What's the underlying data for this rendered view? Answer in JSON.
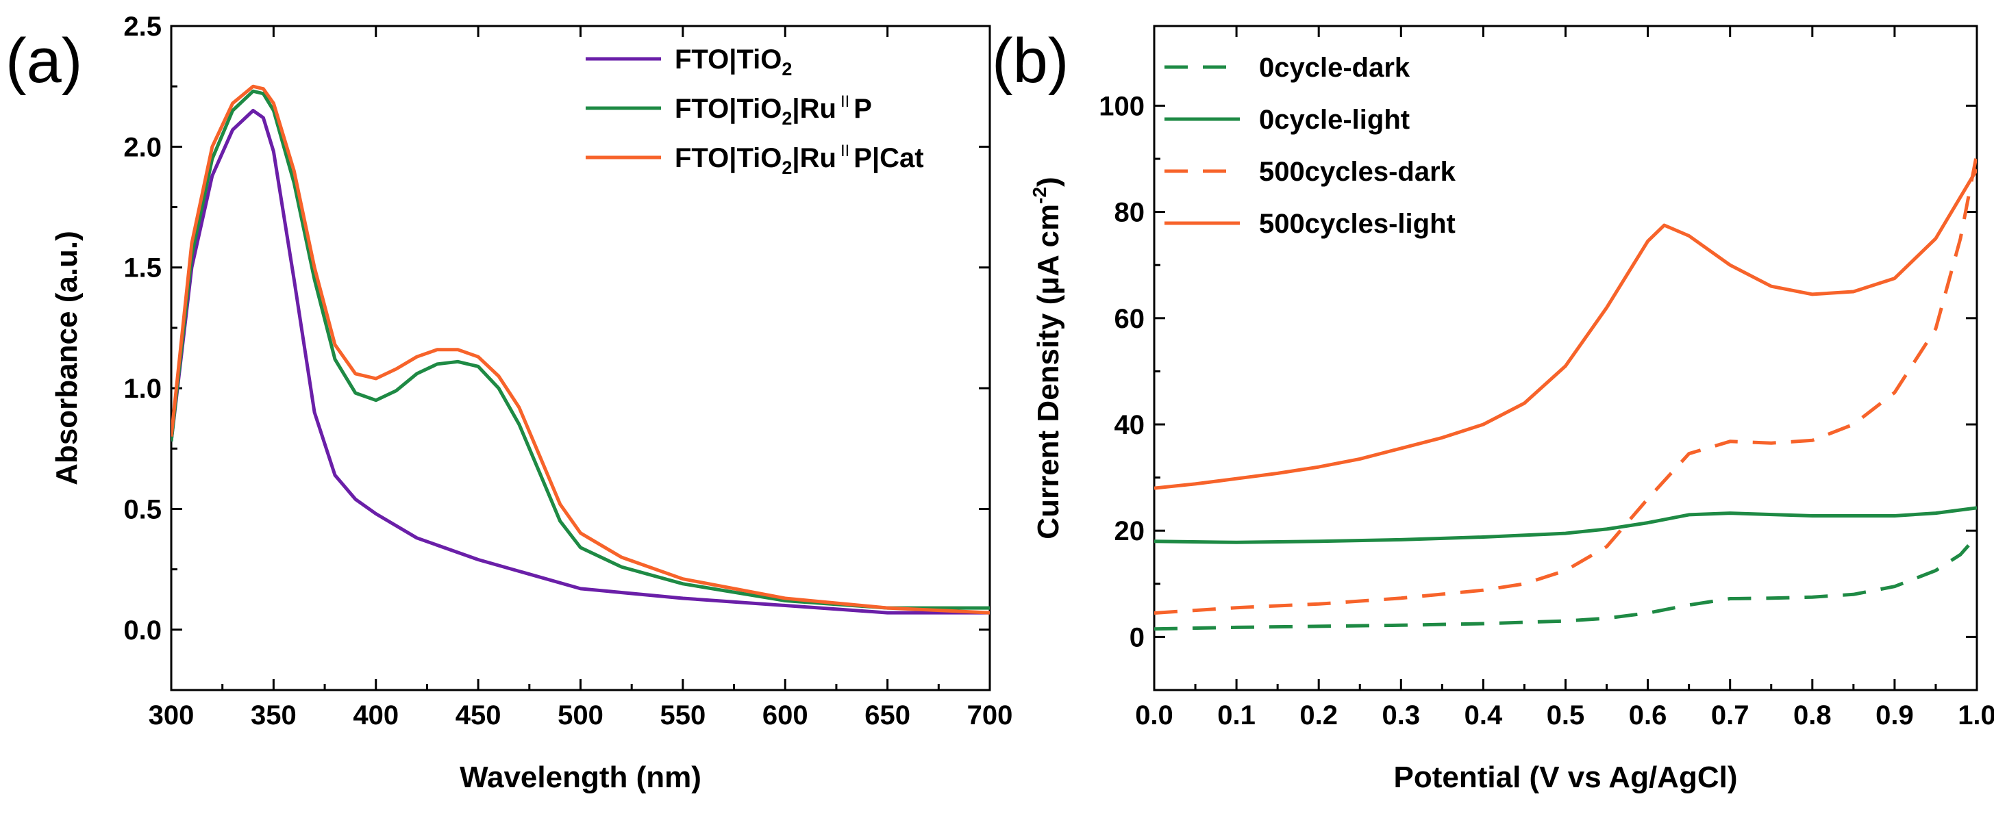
{
  "chart_data": [
    {
      "panel_label": "(a)",
      "type": "line",
      "xlabel": "Wavelength (nm)",
      "ylabel": "Absorbance (a.u.)",
      "xlim": [
        300,
        700
      ],
      "ylim": [
        -0.25,
        2.5
      ],
      "xticks": [
        300,
        350,
        400,
        450,
        500,
        550,
        600,
        650,
        700
      ],
      "yticks": [
        0.0,
        0.5,
        1.0,
        1.5,
        2.0,
        2.5
      ],
      "ytick_labels": [
        "0.0",
        "0.5",
        "1.0",
        "1.5",
        "2.0",
        "2.5"
      ],
      "grid": false,
      "legend_position": "top-right",
      "series": [
        {
          "name": "FTO|TiO2",
          "legend_main": "FTO|TiO",
          "legend_sub": "2",
          "legend_after": "",
          "color": "#6a1fa8",
          "dash": "solid",
          "x": [
            300,
            310,
            320,
            330,
            340,
            345,
            350,
            360,
            370,
            380,
            390,
            400,
            420,
            450,
            500,
            550,
            600,
            650,
            700
          ],
          "y": [
            0.78,
            1.5,
            1.88,
            2.07,
            2.15,
            2.12,
            1.98,
            1.45,
            0.9,
            0.64,
            0.54,
            0.48,
            0.38,
            0.29,
            0.17,
            0.13,
            0.1,
            0.07,
            0.07
          ]
        },
        {
          "name": "FTO|TiO2|RuIIP",
          "legend_main": "FTO|TiO",
          "legend_sub": "2",
          "legend_after": "|Ru",
          "legend_sup": "II",
          "legend_end": "P",
          "color": "#1e8a44",
          "dash": "solid",
          "x": [
            300,
            310,
            320,
            330,
            340,
            345,
            350,
            360,
            370,
            380,
            390,
            400,
            410,
            420,
            430,
            440,
            450,
            460,
            470,
            480,
            490,
            500,
            520,
            550,
            600,
            650,
            700
          ],
          "y": [
            0.78,
            1.55,
            1.95,
            2.15,
            2.23,
            2.22,
            2.15,
            1.85,
            1.45,
            1.12,
            0.98,
            0.95,
            0.99,
            1.06,
            1.1,
            1.11,
            1.09,
            1.0,
            0.85,
            0.65,
            0.45,
            0.34,
            0.26,
            0.19,
            0.12,
            0.09,
            0.09
          ]
        },
        {
          "name": "FTO|TiO2|RuIIP|Cat",
          "legend_main": "FTO|TiO",
          "legend_sub": "2",
          "legend_after": "|Ru",
          "legend_sup": "II",
          "legend_end": "P|Cat",
          "color": "#f7632a",
          "dash": "solid",
          "x": [
            300,
            310,
            320,
            330,
            340,
            345,
            350,
            360,
            370,
            380,
            390,
            400,
            410,
            420,
            430,
            440,
            450,
            460,
            470,
            480,
            490,
            500,
            520,
            550,
            600,
            650,
            700
          ],
          "y": [
            0.8,
            1.6,
            2.0,
            2.18,
            2.25,
            2.24,
            2.18,
            1.9,
            1.5,
            1.18,
            1.06,
            1.04,
            1.08,
            1.13,
            1.16,
            1.16,
            1.13,
            1.05,
            0.92,
            0.72,
            0.52,
            0.4,
            0.3,
            0.21,
            0.13,
            0.09,
            0.07
          ]
        }
      ]
    },
    {
      "panel_label": "(b)",
      "type": "line",
      "xlabel": "Potential (V vs Ag/AgCl)",
      "ylabel_main": "Current Density (μA cm",
      "ylabel_sup": "-2",
      "ylabel_end": ")",
      "xlim": [
        0.0,
        1.0
      ],
      "ylim": [
        -10,
        115
      ],
      "xticks": [
        0.0,
        0.1,
        0.2,
        0.3,
        0.4,
        0.5,
        0.6,
        0.7,
        0.8,
        0.9,
        1.0
      ],
      "xtick_labels": [
        "0.0",
        "0.1",
        "0.2",
        "0.3",
        "0.4",
        "0.5",
        "0.6",
        "0.7",
        "0.8",
        "0.9",
        "1.0"
      ],
      "yticks": [
        0,
        20,
        40,
        60,
        80,
        100
      ],
      "ytick_labels": [
        "0",
        "20",
        "40",
        "60",
        "80",
        "100"
      ],
      "grid": false,
      "legend_position": "top-left",
      "series": [
        {
          "name": "0cycle-dark",
          "color": "#1e8a44",
          "dash": "dashed",
          "x": [
            0.0,
            0.1,
            0.2,
            0.3,
            0.4,
            0.5,
            0.55,
            0.6,
            0.65,
            0.7,
            0.75,
            0.8,
            0.85,
            0.9,
            0.95,
            0.98,
            1.0
          ],
          "y": [
            1.5,
            1.8,
            2.0,
            2.2,
            2.5,
            3.0,
            3.5,
            4.5,
            6.0,
            7.2,
            7.3,
            7.5,
            8.0,
            9.5,
            12.5,
            15.5,
            19.0
          ]
        },
        {
          "name": "0cycle-light",
          "color": "#1e8a44",
          "dash": "solid",
          "x": [
            0.0,
            0.1,
            0.2,
            0.3,
            0.4,
            0.5,
            0.55,
            0.6,
            0.65,
            0.7,
            0.8,
            0.9,
            0.95,
            1.0
          ],
          "y": [
            18.0,
            17.8,
            18.0,
            18.3,
            18.8,
            19.5,
            20.3,
            21.5,
            23.0,
            23.3,
            22.8,
            22.8,
            23.3,
            24.3
          ]
        },
        {
          "name": "500cycles-dark",
          "color": "#f7632a",
          "dash": "dashed",
          "x": [
            0.0,
            0.1,
            0.2,
            0.3,
            0.4,
            0.45,
            0.5,
            0.55,
            0.6,
            0.65,
            0.7,
            0.75,
            0.8,
            0.85,
            0.9,
            0.95,
            0.98,
            1.0
          ],
          "y": [
            4.5,
            5.5,
            6.2,
            7.3,
            8.8,
            10.0,
            12.5,
            17.0,
            26.0,
            34.5,
            36.8,
            36.5,
            37.0,
            40.0,
            46.0,
            58.0,
            75.0,
            91.0
          ]
        },
        {
          "name": "500cycles-light",
          "color": "#f7632a",
          "dash": "solid",
          "x": [
            0.0,
            0.05,
            0.1,
            0.15,
            0.2,
            0.25,
            0.3,
            0.35,
            0.4,
            0.45,
            0.5,
            0.55,
            0.6,
            0.62,
            0.65,
            0.7,
            0.75,
            0.8,
            0.85,
            0.9,
            0.95,
            1.0
          ],
          "y": [
            28.0,
            28.8,
            29.8,
            30.8,
            32.0,
            33.5,
            35.5,
            37.5,
            40.0,
            44.0,
            51.0,
            62.0,
            74.5,
            77.5,
            75.5,
            70.0,
            66.0,
            64.5,
            65.0,
            67.5,
            75.0,
            88.0
          ]
        }
      ]
    }
  ]
}
